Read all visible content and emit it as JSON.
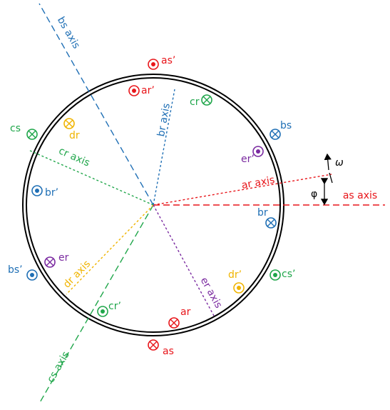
{
  "axes": [
    {
      "label": "as axis"
    },
    {
      "label": "bs axis"
    },
    {
      "label": "cs axis"
    },
    {
      "label": "ar axis"
    },
    {
      "label": "br axis"
    },
    {
      "label": "cr axis"
    },
    {
      "label": "dr axis"
    },
    {
      "label": "er axis"
    }
  ],
  "conductors": [
    {
      "label": "as’"
    },
    {
      "label": "ar’"
    },
    {
      "label": "cr"
    },
    {
      "label": "bs"
    },
    {
      "label": "er’"
    },
    {
      "label": "br"
    },
    {
      "label": "cs’"
    },
    {
      "label": "dr’"
    },
    {
      "label": "ar"
    },
    {
      "label": "as"
    },
    {
      "label": "cr’"
    },
    {
      "label": "bs’"
    },
    {
      "label": "er"
    },
    {
      "label": "br’"
    },
    {
      "label": "cs"
    },
    {
      "label": "dr"
    }
  ],
  "symbols": {
    "omega": "ω",
    "phi": "φ"
  }
}
